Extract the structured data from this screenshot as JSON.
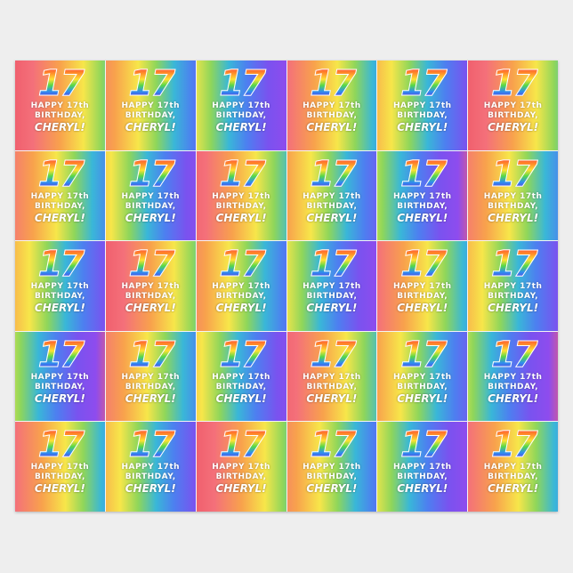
{
  "product": "wrapping paper",
  "grid": {
    "columns": 6,
    "rows": 5
  },
  "tile": {
    "number": "17",
    "line1": "HAPPY 17th",
    "line2": "BIRTHDAY,",
    "name": "CHERYL!"
  },
  "colors": {
    "background": "#eeeeee",
    "gradient": [
      "#f0606e",
      "#f8a24c",
      "#f7e64a",
      "#8fd65a",
      "#39b7d8",
      "#4d7ff0",
      "#8e4cee"
    ]
  }
}
